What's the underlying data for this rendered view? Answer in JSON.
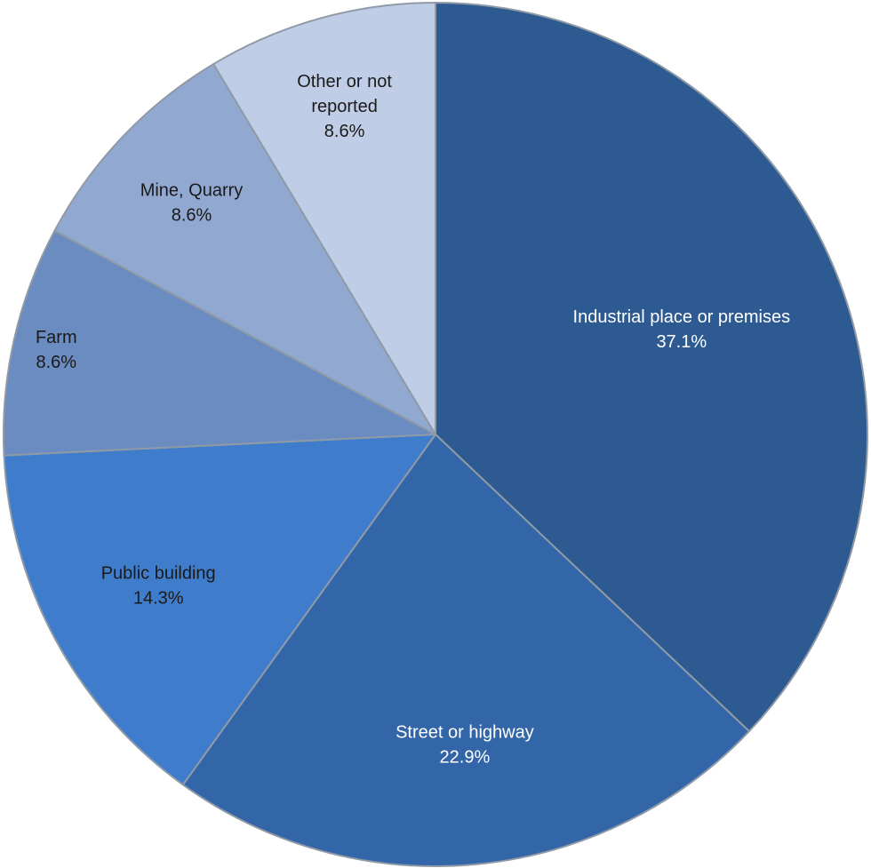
{
  "chart_data": {
    "type": "pie",
    "slices": [
      {
        "label": [
          "Industrial place or premises"
        ],
        "value": 37.1,
        "value_text": "37.1%",
        "color": "#2e5a92",
        "text_color": "#ffffff"
      },
      {
        "label": [
          "Street or highway"
        ],
        "value": 22.9,
        "value_text": "22.9%",
        "color": "#3366a8",
        "text_color": "#ffffff"
      },
      {
        "label": [
          "Public building"
        ],
        "value": 14.3,
        "value_text": "14.3%",
        "color": "#3f7dcc",
        "text_color": "#1a1a1a"
      },
      {
        "label": [
          "Farm"
        ],
        "value": 8.6,
        "value_text": "8.6%",
        "color": "#6b8cc0",
        "text_color": "#1a1a1a"
      },
      {
        "label": [
          "Mine, Quarry"
        ],
        "value": 8.6,
        "value_text": "8.6%",
        "color": "#91a8d1",
        "text_color": "#1a1a1a"
      },
      {
        "label": [
          "Other or not",
          "reported"
        ],
        "value": 8.6,
        "value_text": "8.6%",
        "color": "#c0cde6",
        "text_color": "#1a1a1a"
      }
    ],
    "start_angle_deg": 0,
    "direction": "clockwise"
  }
}
